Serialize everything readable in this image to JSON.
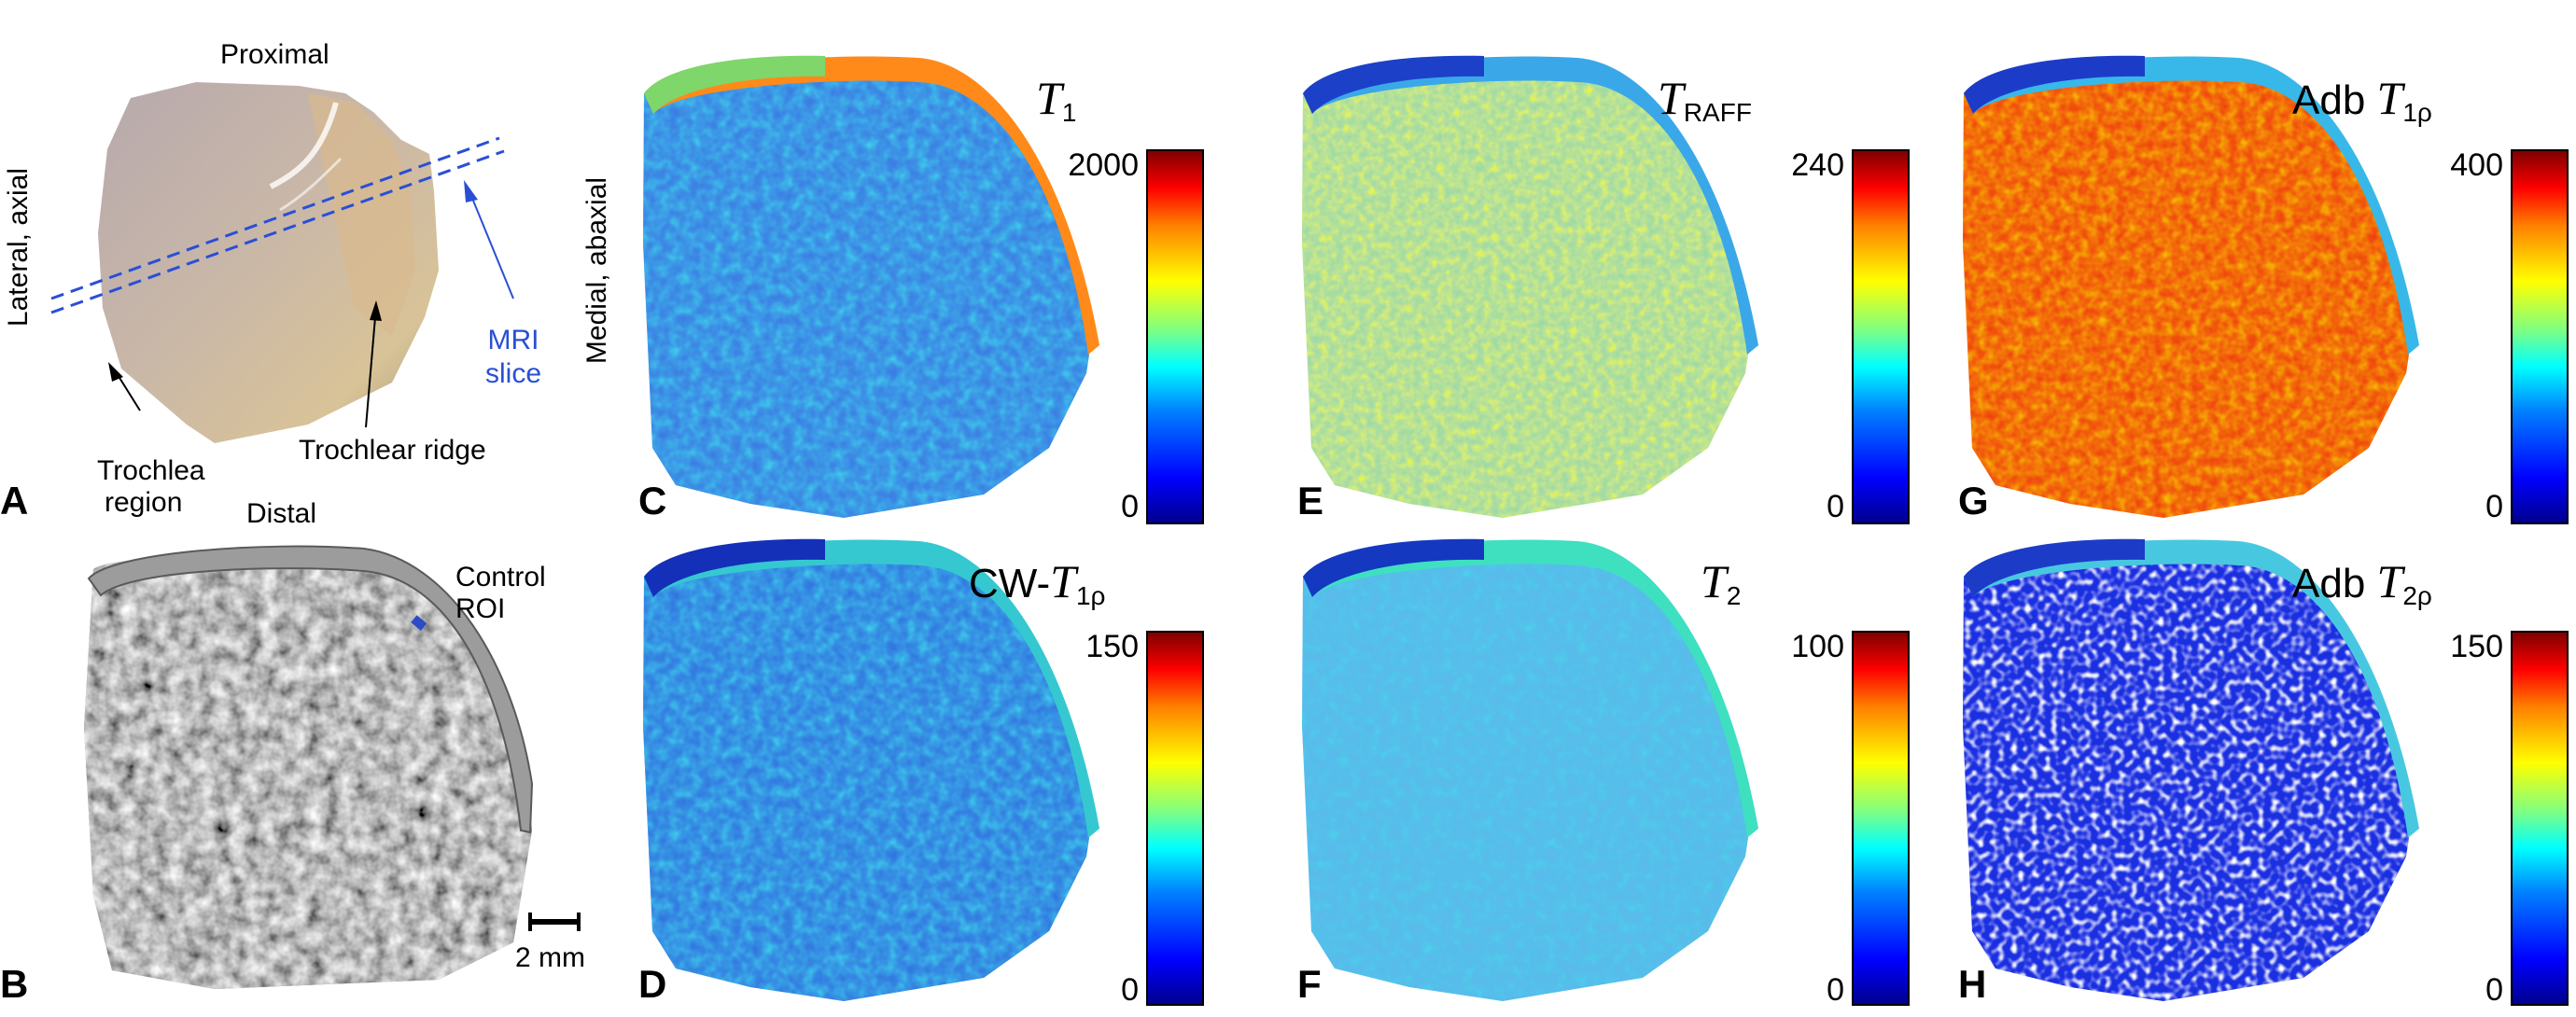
{
  "panel_a": {
    "label_proximal": "Proximal",
    "label_distal": "Distal",
    "label_lateral": "Lateral, axial",
    "label_mri_line1": "MRI",
    "label_mri_line2": "slice",
    "label_trochlea_line1": "Trochlea",
    "label_trochlea_line2": "region",
    "label_ridge": "Trochlear ridge",
    "letter": "A"
  },
  "panel_b": {
    "label_control_line1": "Control",
    "label_control_line2": "ROI",
    "scale_label": "2 mm",
    "letter": "B"
  },
  "medial_label": "Medial, abaxial",
  "maps": [
    {
      "letter": "C",
      "title_main": "T",
      "title_sub": "1",
      "title_sub_italic": "",
      "title_prefix": ""
    },
    {
      "letter": "D",
      "title_main": "T",
      "title_sub": "1ρ",
      "title_sub_italic": "",
      "title_prefix": "CW-"
    },
    {
      "letter": "E",
      "title_main": "T",
      "title_sub": "RAFF",
      "title_sub_italic": "",
      "title_prefix": ""
    },
    {
      "letter": "F",
      "title_main": "T",
      "title_sub": "2",
      "title_sub_italic": "",
      "title_prefix": ""
    },
    {
      "letter": "G",
      "title_main": "T",
      "title_sub": "1ρ",
      "title_sub_italic": "",
      "title_prefix": "Adb "
    },
    {
      "letter": "H",
      "title_main": "T",
      "title_sub": "2ρ",
      "title_sub_italic": "",
      "title_prefix": "Adb "
    }
  ],
  "colorbars": [
    {
      "max": "2000",
      "min": "0"
    },
    {
      "max": "150",
      "min": "0"
    },
    {
      "max": "240",
      "min": "0"
    },
    {
      "max": "100",
      "min": "0"
    },
    {
      "max": "400",
      "min": "0"
    },
    {
      "max": "150",
      "min": "0"
    }
  ]
}
